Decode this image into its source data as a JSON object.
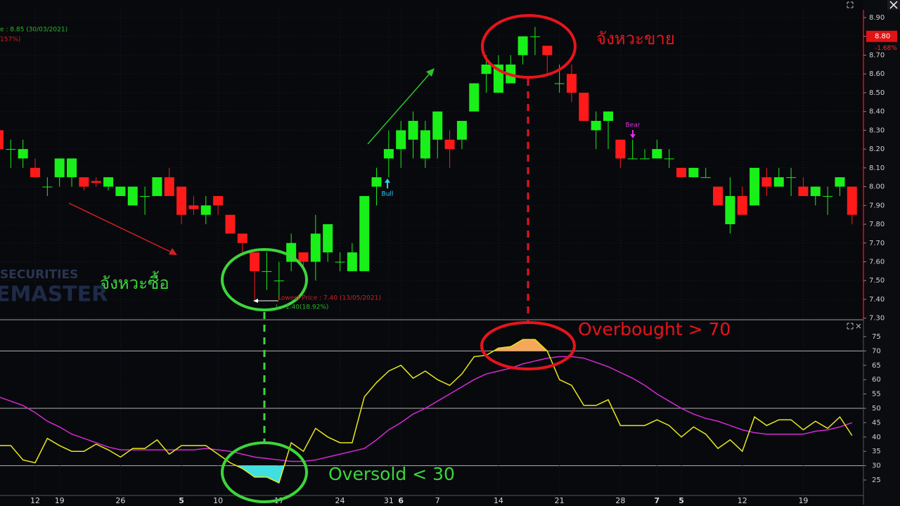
{
  "chart_data": [
    {
      "type": "candlestick",
      "open": [
        8.3,
        8.2,
        8.15,
        8.1,
        8.0,
        8.05,
        8.05,
        8.05,
        8.03,
        8.0,
        7.95,
        7.9,
        7.95,
        7.95,
        8.05,
        8.0,
        7.9,
        7.85,
        7.95,
        7.85,
        7.75,
        7.65,
        7.55,
        7.5,
        7.6,
        7.65,
        7.6,
        7.65,
        7.6,
        7.55,
        7.55,
        8.0,
        8.15,
        8.2,
        8.25,
        8.15,
        8.25,
        8.25,
        8.25,
        8.4,
        8.6,
        8.5,
        8.55,
        8.7,
        8.8,
        8.75,
        8.55,
        8.6,
        8.5,
        8.3,
        8.35,
        8.25,
        8.15,
        8.15,
        8.15,
        8.15,
        8.1,
        8.05,
        8.05,
        8.0,
        7.8,
        7.95,
        7.9,
        8.05,
        8.0,
        8.05,
        8.0,
        7.95,
        7.95,
        8.0,
        8.0
      ],
      "high": [
        8.3,
        8.25,
        8.25,
        8.15,
        8.05,
        8.15,
        8.15,
        8.05,
        8.05,
        8.05,
        8.0,
        8.0,
        8.0,
        8.05,
        8.1,
        8.0,
        7.95,
        7.95,
        7.95,
        7.85,
        7.75,
        7.65,
        7.65,
        7.6,
        7.75,
        7.65,
        7.85,
        7.8,
        7.65,
        7.7,
        7.95,
        8.1,
        8.3,
        8.35,
        8.4,
        8.35,
        8.4,
        8.3,
        8.35,
        8.55,
        8.7,
        8.7,
        8.7,
        8.8,
        8.85,
        8.75,
        8.65,
        8.65,
        8.5,
        8.4,
        8.4,
        8.25,
        8.25,
        8.2,
        8.25,
        8.2,
        8.1,
        8.1,
        8.1,
        8.0,
        8.05,
        8.0,
        8.1,
        8.1,
        8.1,
        8.1,
        8.05,
        8.0,
        8.0,
        8.05,
        8.0
      ],
      "low": [
        8.1,
        8.1,
        8.1,
        8.05,
        7.95,
        8.0,
        8.0,
        7.98,
        8.0,
        7.98,
        7.95,
        7.9,
        7.85,
        7.95,
        7.95,
        7.8,
        7.85,
        7.8,
        7.85,
        7.75,
        7.65,
        7.4,
        7.45,
        7.4,
        7.55,
        7.55,
        7.5,
        7.6,
        7.55,
        7.55,
        7.55,
        7.9,
        8.05,
        8.1,
        8.15,
        8.1,
        8.15,
        8.1,
        8.2,
        8.4,
        8.5,
        8.5,
        8.55,
        8.65,
        8.7,
        8.6,
        8.5,
        8.45,
        8.35,
        8.2,
        8.2,
        8.1,
        8.15,
        8.15,
        8.15,
        8.1,
        8.05,
        8.05,
        8.05,
        7.9,
        7.75,
        7.85,
        7.9,
        7.95,
        8.0,
        7.95,
        7.95,
        7.9,
        7.85,
        7.95,
        7.8
      ],
      "close": [
        8.2,
        8.2,
        8.2,
        8.05,
        8.0,
        8.15,
        8.15,
        8.0,
        8.02,
        8.05,
        8.0,
        8.0,
        7.95,
        8.05,
        7.95,
        7.85,
        7.88,
        7.9,
        7.9,
        7.75,
        7.7,
        7.55,
        7.55,
        7.5,
        7.7,
        7.6,
        7.75,
        7.8,
        7.6,
        7.65,
        7.95,
        8.05,
        8.2,
        8.3,
        8.35,
        8.3,
        8.4,
        8.2,
        8.35,
        8.55,
        8.65,
        8.65,
        8.65,
        8.8,
        8.8,
        8.7,
        8.55,
        8.5,
        8.35,
        8.35,
        8.4,
        8.15,
        8.15,
        8.15,
        8.2,
        8.15,
        8.05,
        8.1,
        8.05,
        7.9,
        7.95,
        7.85,
        8.1,
        8.0,
        8.05,
        8.05,
        7.95,
        8.0,
        7.95,
        8.05,
        7.85
      ],
      "up_color": "#19f019",
      "down_color": "#ff1a1a",
      "ylim": [
        7.3,
        8.9
      ],
      "yticks": [
        {
          "value": 7.3,
          "label": "7.30"
        },
        {
          "value": 7.4,
          "label": "7.40"
        },
        {
          "value": 7.5,
          "label": "7.50"
        },
        {
          "value": 7.6,
          "label": "7.60"
        },
        {
          "value": 7.7,
          "label": "7.70"
        },
        {
          "value": 7.8,
          "label": "7.80"
        },
        {
          "value": 7.9,
          "label": "7.90"
        },
        {
          "value": 8.0,
          "label": "8.00"
        },
        {
          "value": 8.1,
          "label": "8.10"
        },
        {
          "value": 8.2,
          "label": "8.20"
        },
        {
          "value": 8.3,
          "label": "8.30"
        },
        {
          "value": 8.4,
          "label": "8.40"
        },
        {
          "value": 8.5,
          "label": "8.50"
        },
        {
          "value": 8.6,
          "label": "8.60"
        },
        {
          "value": 8.7,
          "label": "8.70"
        },
        {
          "value": 8.8,
          "label": "8.80"
        },
        {
          "value": 8.9,
          "label": "8.90"
        }
      ],
      "grid": true,
      "price_tag": {
        "value": 8.8,
        "label": "8.80"
      },
      "price_change": "-1.68%",
      "annotations": {
        "sell_zone": "จังหวะขาย",
        "buy_zone": "จังหวะซื้อ",
        "bull": "Bull",
        "bear": "Bear",
        "lowest": "Lowest Price : 7.40 (13/05/2021)",
        "lowest_change": "L - 1.40(18.92%)",
        "highest": "e : 8.85 (30/03/2021)",
        "highest_change": "157%)",
        "watermark_top": "SECURITIES",
        "watermark_bottom": "EMASTER"
      }
    },
    {
      "type": "line",
      "categories": [
        null,
        null,
        null,
        "12",
        null,
        "19",
        null,
        null,
        null,
        null,
        "26",
        null,
        null,
        null,
        null,
        "5",
        null,
        null,
        "10",
        null,
        null,
        null,
        null,
        "17",
        null,
        null,
        null,
        null,
        "24",
        null,
        null,
        null,
        "31",
        "6",
        null,
        null,
        "7",
        null,
        null,
        null,
        null,
        "14",
        null,
        null,
        null,
        null,
        "21",
        null,
        null,
        null,
        null,
        "28",
        null,
        null,
        "7",
        null,
        "5",
        null,
        null,
        null,
        null,
        "12",
        null,
        null,
        null,
        null,
        "19",
        null,
        null,
        null,
        null
      ],
      "series": [
        {
          "color": "#e8e81a",
          "values": [
            37,
            37,
            32,
            31,
            39.5,
            37,
            35,
            35,
            37.5,
            35.5,
            33,
            36,
            36,
            39,
            34,
            37,
            37,
            37,
            34,
            31,
            29,
            26,
            26,
            24,
            38,
            35,
            43,
            40,
            38,
            38,
            54,
            59,
            63,
            65,
            60.5,
            63,
            60,
            58,
            62,
            68,
            68.5,
            71,
            71.5,
            74,
            74,
            70,
            60,
            58,
            51,
            51,
            53,
            44,
            44,
            44,
            46,
            44,
            40,
            43.5,
            41,
            36,
            39,
            35,
            47,
            44,
            46,
            46,
            42.5,
            45.5,
            43,
            47,
            40.5
          ]
        },
        {
          "color": "#d42ad4",
          "values": [
            54,
            52.5,
            51,
            48.5,
            45.5,
            43.5,
            41,
            39.5,
            38,
            36.5,
            35.5,
            35.5,
            35.5,
            35.5,
            35.5,
            35.5,
            35.5,
            36,
            35.5,
            35,
            34,
            33,
            32.5,
            32,
            31.5,
            31.5,
            32,
            33,
            34,
            35,
            36,
            39,
            42.5,
            45,
            48,
            50,
            52.5,
            55,
            57.5,
            60,
            62,
            63,
            64,
            65.5,
            66.5,
            67.5,
            68,
            68,
            67.5,
            66,
            64.5,
            62.5,
            60.5,
            58,
            55,
            52.5,
            50,
            48,
            46.5,
            45.5,
            44,
            42.5,
            41.5,
            41,
            41,
            41,
            41,
            42,
            42.5,
            43.5,
            45
          ]
        }
      ],
      "ylim": [
        20,
        80
      ],
      "yticks": [
        25,
        30,
        35,
        40,
        45,
        50,
        55,
        60,
        65,
        70,
        75
      ],
      "levels": [
        30,
        50,
        70
      ],
      "overbought": 70,
      "oversold": 30,
      "overbought_color": "#f5a85a",
      "oversold_color": "#40e0e0",
      "annotations": {
        "overbought": "Overbought > 70",
        "oversold": "Oversold < 30"
      }
    }
  ]
}
